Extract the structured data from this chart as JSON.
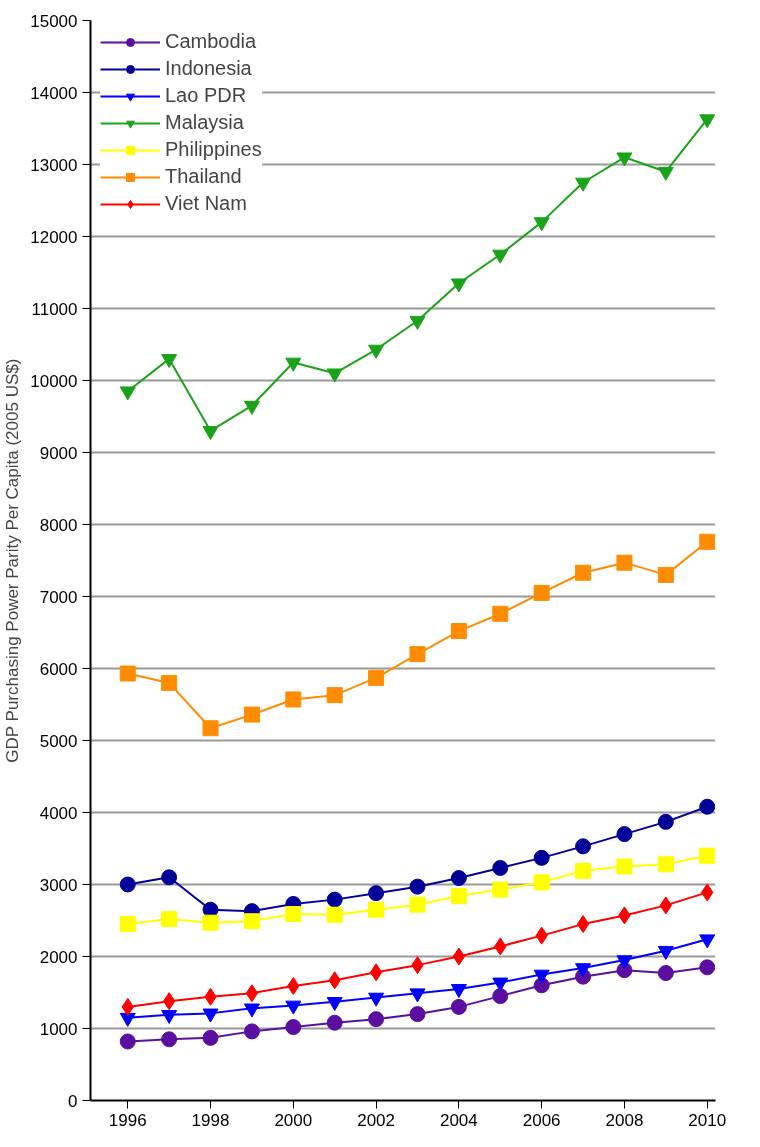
{
  "chart_data": {
    "type": "line",
    "ylabel": "GDP Purchasing Power Parity Per Capita (2005 US$)",
    "x": [
      1996,
      1997,
      1998,
      1999,
      2000,
      2001,
      2002,
      2003,
      2004,
      2005,
      2006,
      2007,
      2008,
      2009,
      2010
    ],
    "xlim": [
      1995.1,
      2010.2
    ],
    "xticks": [
      1996,
      1998,
      2000,
      2002,
      2004,
      2006,
      2008,
      2010
    ],
    "ylim": [
      0,
      15000
    ],
    "yticks": [
      0,
      1000,
      2000,
      3000,
      4000,
      5000,
      6000,
      7000,
      8000,
      9000,
      10000,
      11000,
      12000,
      13000,
      14000,
      15000
    ],
    "grid": "y",
    "legend": "top left",
    "line_style": "solid",
    "series": [
      {
        "name": "Cambodia",
        "color": "#5a0fa0",
        "marker": "circle",
        "values": [
          820,
          850,
          870,
          960,
          1020,
          1080,
          1130,
          1200,
          1300,
          1450,
          1600,
          1720,
          1810,
          1770,
          1850
        ]
      },
      {
        "name": "Indonesia",
        "color": "#000099",
        "marker": "circle",
        "values": [
          3000,
          3100,
          2650,
          2630,
          2730,
          2790,
          2880,
          2970,
          3090,
          3230,
          3370,
          3530,
          3700,
          3870,
          4080
        ]
      },
      {
        "name": "Lao PDR",
        "color": "#0000ff",
        "marker": "triangle",
        "values": [
          1150,
          1190,
          1210,
          1280,
          1320,
          1370,
          1430,
          1490,
          1550,
          1640,
          1750,
          1840,
          1950,
          2080,
          2240
        ]
      },
      {
        "name": "Malaysia",
        "color": "#1aa31a",
        "marker": "triangle",
        "values": [
          9850,
          10300,
          9300,
          9650,
          10250,
          10100,
          10430,
          10830,
          11350,
          11750,
          12200,
          12750,
          13100,
          12900,
          13630
        ]
      },
      {
        "name": "Philippines",
        "color": "#ffff00",
        "marker": "square",
        "values": [
          2450,
          2520,
          2470,
          2490,
          2590,
          2580,
          2650,
          2720,
          2840,
          2930,
          3030,
          3190,
          3250,
          3280,
          3400
        ]
      },
      {
        "name": "Thailand",
        "color": "#ff8c00",
        "marker": "square",
        "values": [
          5930,
          5800,
          5170,
          5360,
          5570,
          5630,
          5870,
          6200,
          6520,
          6760,
          7050,
          7330,
          7470,
          7300,
          7760
        ]
      },
      {
        "name": "Viet Nam",
        "color": "#ff0000",
        "marker": "diamond",
        "values": [
          1300,
          1380,
          1440,
          1490,
          1590,
          1670,
          1780,
          1880,
          2000,
          2140,
          2290,
          2450,
          2570,
          2710,
          2890
        ]
      }
    ]
  }
}
